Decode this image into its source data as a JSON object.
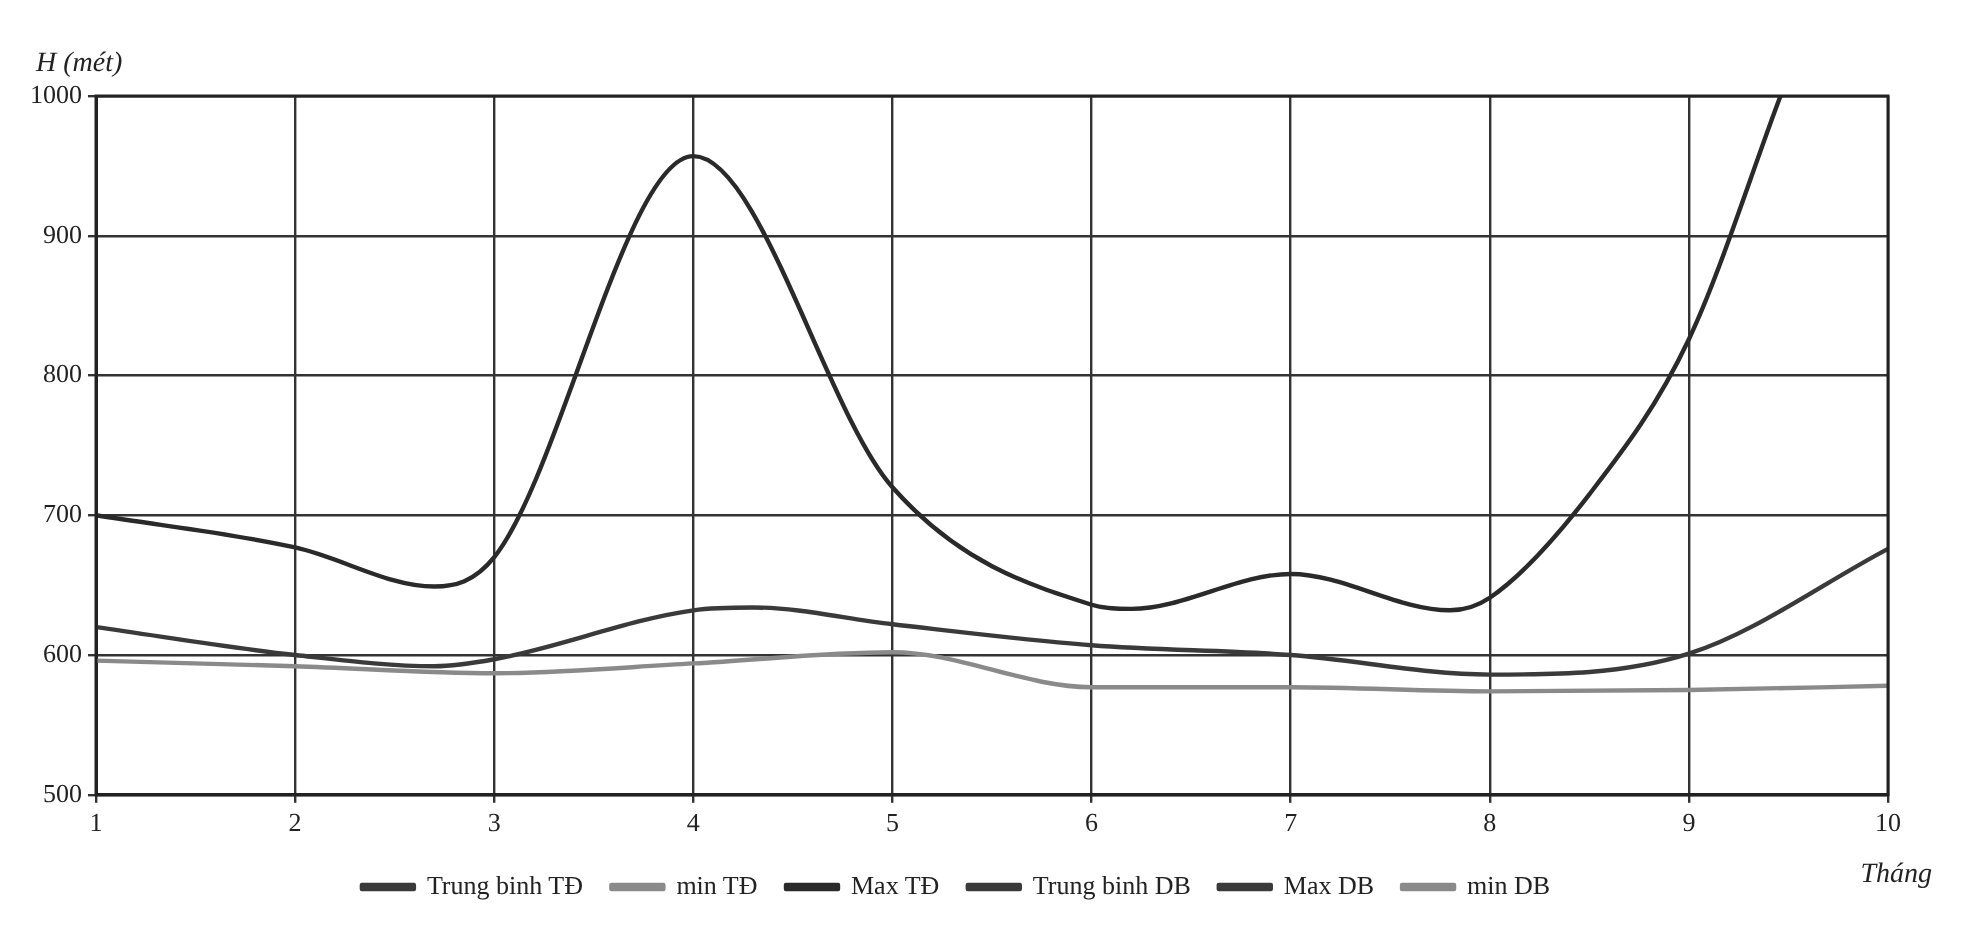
{
  "chart_data": {
    "type": "line",
    "xlabel": "Tháng",
    "ylabel": "H (mét)",
    "xlim": [
      1,
      10
    ],
    "xticks": [
      1,
      2,
      3,
      4,
      5,
      6,
      7,
      8,
      9,
      10
    ],
    "ylim": [
      500,
      1000
    ],
    "yticks": [
      500,
      600,
      700,
      800,
      900,
      1000
    ],
    "grid": true,
    "legend": "bottom",
    "marker": "none",
    "line_style": "solid",
    "x": [
      1,
      2,
      3,
      4,
      5,
      6,
      7,
      8,
      9,
      10
    ],
    "series": [
      {
        "name": "Trung binh TĐ",
        "color": "#3a3a3a",
        "x": [
          1,
          2,
          2.7,
          3,
          4,
          4.3,
          5,
          6,
          7,
          8,
          9,
          10
        ],
        "values": [
          620,
          600,
          592,
          597,
          632,
          634,
          622,
          607,
          600,
          586,
          601,
          676
        ]
      },
      {
        "name": "min TĐ",
        "color": "#8a8a8a",
        "values": [
          596,
          592,
          587,
          594,
          602,
          577,
          577,
          574,
          575,
          578
        ]
      },
      {
        "name": "Max TĐ",
        "color": "#2a2a2a",
        "x": [
          1,
          2,
          2.7,
          3,
          4,
          5,
          6,
          6.2,
          7,
          7.8,
          8,
          8.5,
          9,
          9.46
        ],
        "values": [
          700,
          677,
          649,
          670,
          957,
          720,
          636,
          633,
          658,
          632,
          641,
          715,
          826,
          1000
        ]
      },
      {
        "name": "Trung binh DB",
        "color": "#3a3a3a",
        "values": [
          null,
          null,
          null,
          null,
          null,
          null,
          null,
          null,
          null,
          null
        ]
      },
      {
        "name": "Max DB",
        "color": "#3a3a3a",
        "values": [
          null,
          null,
          null,
          null,
          null,
          null,
          null,
          null,
          null,
          null
        ]
      },
      {
        "name": "min DB",
        "color": "#8a8a8a",
        "values": [
          null,
          null,
          null,
          null,
          null,
          null,
          null,
          null,
          null,
          null
        ]
      }
    ]
  }
}
